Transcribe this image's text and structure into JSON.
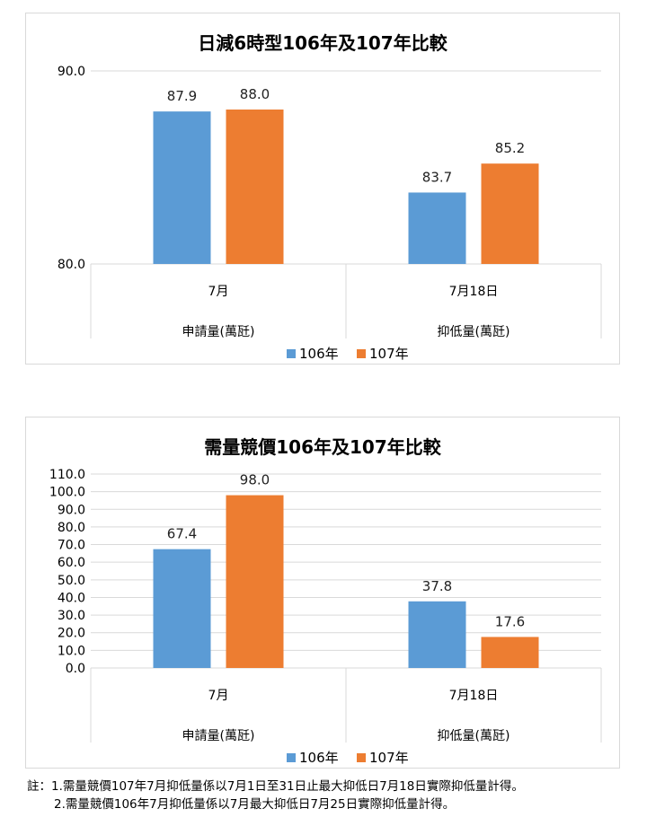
{
  "chart_data": [
    {
      "type": "bar",
      "title": "日減6時型106年及107年比較",
      "categories": [
        "7月",
        "7月18日"
      ],
      "category_groups": [
        "申請量(萬瓩)",
        "抑低量(萬瓩)"
      ],
      "series": [
        {
          "name": "106年",
          "values": [
            87.9,
            83.7
          ],
          "labels": [
            "87.9",
            "83.7"
          ],
          "color": "#5b9bd5"
        },
        {
          "name": "107年",
          "values": [
            88.0,
            85.2
          ],
          "labels": [
            "88.0",
            "85.2"
          ],
          "color": "#ed7d31"
        }
      ],
      "ylim": [
        80,
        90
      ],
      "yticks": [
        "80.0",
        "90.0"
      ],
      "ytick_values": [
        80,
        90
      ],
      "grid": true,
      "legend": "bottom"
    },
    {
      "type": "bar",
      "title": "需量競價106年及107年比較",
      "categories": [
        "7月",
        "7月18日"
      ],
      "category_groups": [
        "申請量(萬瓩)",
        "抑低量(萬瓩)"
      ],
      "series": [
        {
          "name": "106年",
          "values": [
            67.4,
            37.8
          ],
          "labels": [
            "67.4",
            "37.8"
          ],
          "color": "#5b9bd5"
        },
        {
          "name": "107年",
          "values": [
            98.0,
            17.6
          ],
          "labels": [
            "98.0",
            "17.6"
          ],
          "color": "#ed7d31"
        }
      ],
      "ylim": [
        0,
        110
      ],
      "yticks": [
        "0.0",
        "10.0",
        "20.0",
        "30.0",
        "40.0",
        "50.0",
        "60.0",
        "70.0",
        "80.0",
        "90.0",
        "100.0",
        "110.0"
      ],
      "ytick_values": [
        0,
        10,
        20,
        30,
        40,
        50,
        60,
        70,
        80,
        90,
        100,
        110
      ],
      "grid": true,
      "legend": "bottom"
    }
  ],
  "notes": {
    "line1": "註：1.需量競價107年7月抑低量係以7月1日至31日止最大抑低日7月18日實際抑低量計得。",
    "line2": "2.需量競價106年7月抑低量係以7月最大抑低日7月25日實際抑低量計得。"
  }
}
